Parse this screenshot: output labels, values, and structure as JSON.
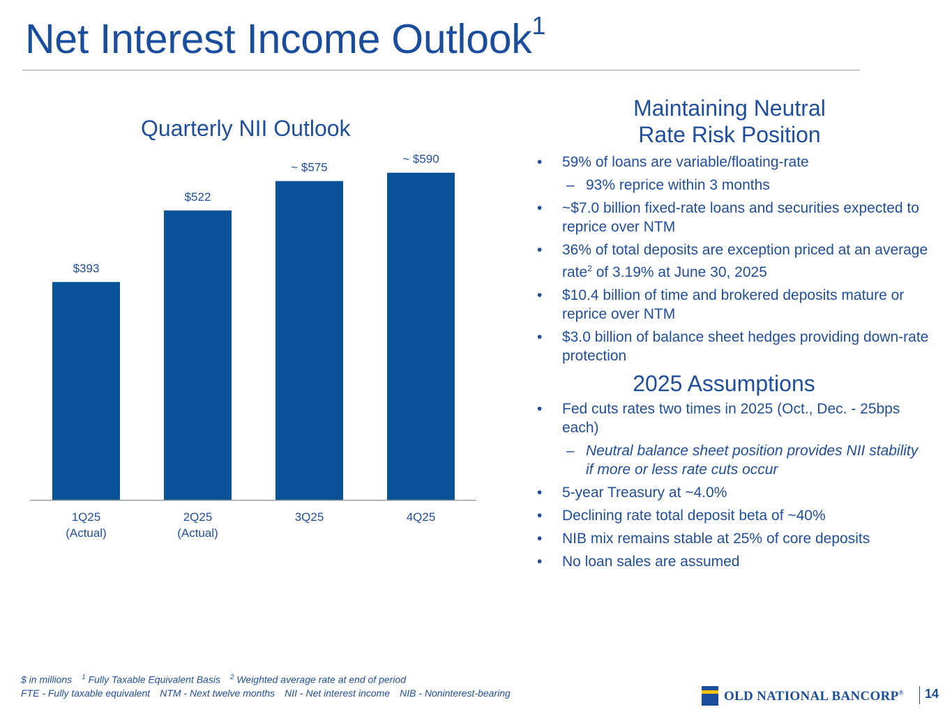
{
  "page": {
    "title": "Net Interest Income Outlook",
    "title_sup": "1",
    "page_number": "14"
  },
  "chart_data": {
    "type": "bar",
    "title": "Quarterly NII Outlook",
    "categories": [
      "1Q25\n(Actual)",
      "2Q25\n(Actual)",
      "3Q25",
      "4Q25"
    ],
    "values": [
      393,
      522,
      575,
      590
    ],
    "data_labels": [
      "$393",
      "$522",
      "~ $575",
      "~ $590"
    ],
    "ylim": [
      0,
      650
    ],
    "xlabel": "",
    "ylabel": "",
    "grid": false,
    "color": "#0a5298"
  },
  "right": {
    "section1_title_line1": "Maintaining Neutral",
    "section1_title_line2": "Rate Risk Position",
    "section1_bullets": [
      {
        "text": "59% of loans are variable/floating-rate"
      },
      {
        "text": "93% reprice within 3 months"
      },
      {
        "text": "~$7.0 billion fixed-rate loans and securities expected to reprice over NTM"
      },
      {
        "text_before": "36% of total deposits are exception priced at an average rate",
        "sup": "2",
        "text_after": " of 3.19% at June 30, 2025"
      },
      {
        "text": "$10.4 billion of time and brokered deposits mature or reprice over NTM"
      },
      {
        "text": "$3.0 billion of balance sheet hedges providing down-rate protection"
      }
    ],
    "section2_title": "2025 Assumptions",
    "section2_bullets": [
      {
        "text": "Fed cuts rates two times in 2025 (Oct., Dec. - 25bps each)"
      },
      {
        "text": "Neutral balance sheet position provides NII stability if more or less rate cuts occur"
      },
      {
        "text": "5-year Treasury at ~4.0%"
      },
      {
        "text": "Declining rate total deposit beta of ~40%"
      },
      {
        "text": "NIB mix remains stable at 25% of core deposits"
      },
      {
        "text": "No loan sales are assumed"
      }
    ]
  },
  "footnotes": {
    "units": "$ in millions",
    "fn1_num": "1",
    "fn1": " Fully Taxable Equivalent Basis",
    "fn2_num": "2",
    "fn2": " Weighted average rate at end of period",
    "abbr_fte": "FTE - Fully taxable equivalent",
    "abbr_ntm": "NTM - Next twelve months",
    "abbr_nii": "NII - Net interest income",
    "abbr_nib": "NIB - Noninterest-bearing"
  },
  "logo": {
    "text": "OLD NATIONAL BANCORP",
    "reg": "®"
  }
}
